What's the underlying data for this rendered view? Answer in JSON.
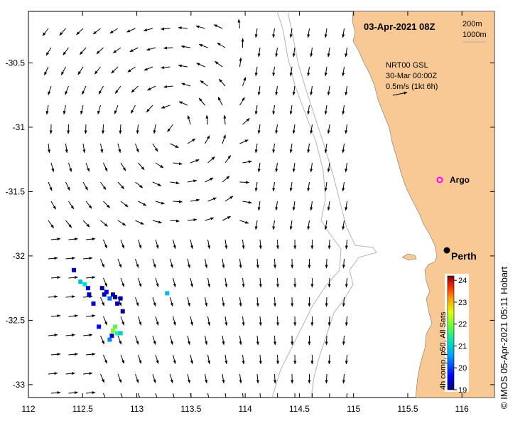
{
  "title": "03-Apr-2021 08Z",
  "depth_legend": {
    "contour_1": "200m",
    "contour_2": "1000m"
  },
  "product": {
    "line1": "NRT00 GSL",
    "line2": "30-Mar 00:00Z",
    "line3": "0.5m/s (1kt 6h)"
  },
  "places": [
    {
      "name": "Argo",
      "lon": 115.82,
      "lat": -31.4
    },
    {
      "name": "Perth",
      "lon": 115.86,
      "lat": -31.95
    }
  ],
  "axes": {
    "x_ticks": [
      "112",
      "112.5",
      "113",
      "113.5",
      "114",
      "114.5",
      "115",
      "115.5",
      "116"
    ],
    "y_ticks": [
      "-30.5",
      "-31",
      "-31.5",
      "-32",
      "-32.5",
      "-33"
    ],
    "xlim": [
      112,
      116.3
    ],
    "ylim": [
      -33.1,
      -30.1
    ]
  },
  "colorbar": {
    "label": "4h comp, p50, All Sats",
    "ticks": [
      "19",
      "20",
      "21",
      "22",
      "23",
      "24"
    ],
    "range": [
      19,
      24.2
    ]
  },
  "credit": "© IMOS 05-Apr-2021 05:11 Hobart",
  "colors": {
    "land": "#f9c995",
    "isobath": "#b4b4b4",
    "arrow": "#000000",
    "argo": "#ff00ff"
  },
  "sst_pixels": [
    {
      "lon": 112.42,
      "lat": -32.11,
      "v": 19.3
    },
    {
      "lon": 112.48,
      "lat": -32.2,
      "v": 20.8
    },
    {
      "lon": 112.52,
      "lat": -32.22,
      "v": 21.2
    },
    {
      "lon": 112.55,
      "lat": -32.25,
      "v": 19.6
    },
    {
      "lon": 112.56,
      "lat": -32.3,
      "v": 19.3
    },
    {
      "lon": 112.6,
      "lat": -32.37,
      "v": 19.4
    },
    {
      "lon": 112.68,
      "lat": -32.25,
      "v": 19.1
    },
    {
      "lon": 112.7,
      "lat": -32.3,
      "v": 19.2
    },
    {
      "lon": 112.72,
      "lat": -32.28,
      "v": 19.5
    },
    {
      "lon": 112.75,
      "lat": -32.33,
      "v": 20.2
    },
    {
      "lon": 112.78,
      "lat": -32.3,
      "v": 19.2
    },
    {
      "lon": 112.8,
      "lat": -32.32,
      "v": 19.1
    },
    {
      "lon": 112.82,
      "lat": -32.37,
      "v": 19.3
    },
    {
      "lon": 112.85,
      "lat": -32.33,
      "v": 19.2
    },
    {
      "lon": 112.87,
      "lat": -32.43,
      "v": 19.1
    },
    {
      "lon": 112.8,
      "lat": -32.55,
      "v": 21.8
    },
    {
      "lon": 112.78,
      "lat": -32.58,
      "v": 22.0
    },
    {
      "lon": 112.82,
      "lat": -32.6,
      "v": 21.5
    },
    {
      "lon": 112.85,
      "lat": -32.6,
      "v": 21.0
    },
    {
      "lon": 112.77,
      "lat": -32.62,
      "v": 19.4
    },
    {
      "lon": 112.75,
      "lat": -32.65,
      "v": 20.4
    },
    {
      "lon": 112.65,
      "lat": -32.55,
      "v": 19.6
    },
    {
      "lon": 113.28,
      "lat": -32.29,
      "v": 20.8
    }
  ]
}
